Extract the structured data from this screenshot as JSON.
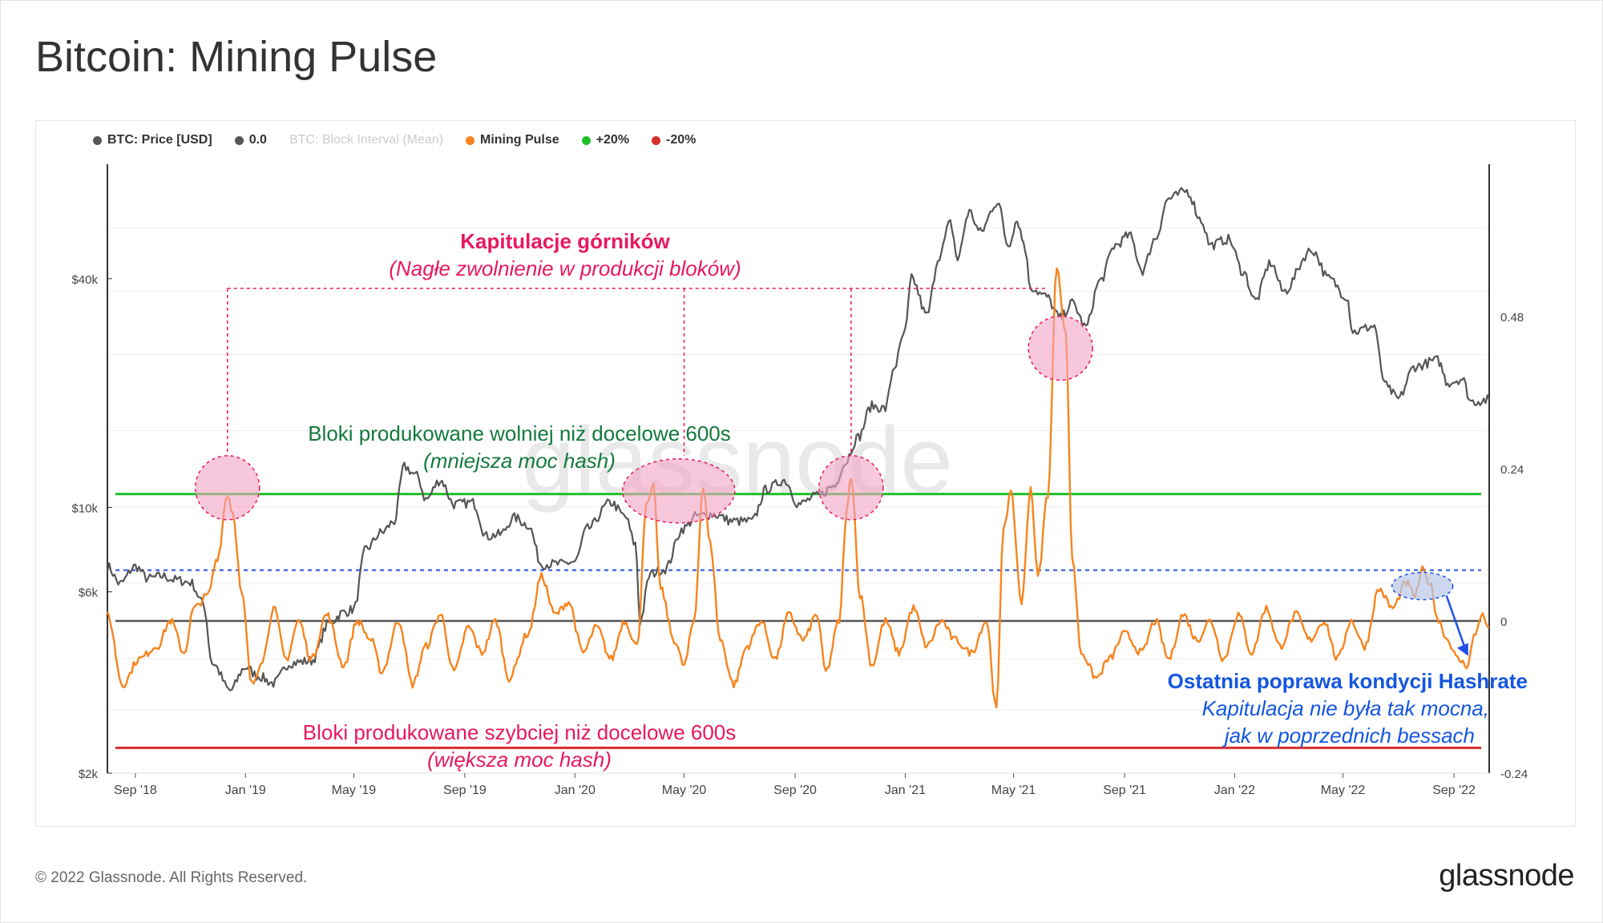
{
  "title": "Bitcoin: Mining Pulse",
  "footer": "© 2022 Glassnode. All Rights Reserved.",
  "brand": "glassnode",
  "watermark": "glassnode",
  "legend": [
    {
      "label": "BTC: Price [USD]",
      "color": "#555555",
      "enabled": true
    },
    {
      "label": "0.0",
      "color": "#555555",
      "enabled": true
    },
    {
      "label": "BTC: Block Interval (Mean)",
      "color": "#cccccc",
      "enabled": false
    },
    {
      "label": "Mining Pulse",
      "color": "#f7841e",
      "enabled": true
    },
    {
      "label": "+20%",
      "color": "#1fbf2a",
      "enabled": true
    },
    {
      "label": "-20%",
      "color": "#d62d2d",
      "enabled": true
    }
  ],
  "annotations": {
    "capitulation_title": "Kapitulacje górników",
    "capitulation_sub": "(Nagłe zwolnienie w produkcji bloków)",
    "slow_title": "Bloki produkowane wolniej niż docelowe 600s",
    "slow_sub": "(mniejsza moc hash)",
    "fast_title": "Bloki produkowane szybciej niż docelowe 600s",
    "fast_sub": "(większa moc hash)",
    "recovery_title": "Ostatnia poprawa kondycji Hashrate",
    "recovery_sub1": "Kapitulacja nie była tak mocna,",
    "recovery_sub2": "jak w poprzednich bessach"
  },
  "chart_data": {
    "type": "line",
    "x_range": [
      "2018-08-01",
      "2022-10-10"
    ],
    "x_ticks": [
      "Sep '18",
      "Jan '19",
      "May '19",
      "Sep '19",
      "Jan '20",
      "May '20",
      "Sep '20",
      "Jan '21",
      "May '21",
      "Sep '21",
      "Jan '22",
      "May '22",
      "Sep '22"
    ],
    "x_tick_dates": [
      "2018-09-01",
      "2019-01-01",
      "2019-05-01",
      "2019-09-01",
      "2020-01-01",
      "2020-05-01",
      "2020-09-01",
      "2021-01-01",
      "2021-05-01",
      "2021-09-01",
      "2022-01-01",
      "2022-05-01",
      "2022-09-01"
    ],
    "y_left": {
      "scale": "log",
      "ticks": [
        "$2k",
        "$6k",
        "$10k",
        "$40k"
      ],
      "tick_values": [
        2000,
        6000,
        10000,
        40000
      ],
      "range": [
        2000,
        80000
      ]
    },
    "y_right": {
      "scale": "linear",
      "ticks": [
        "-0.24",
        "0",
        "0.24",
        "0.48"
      ],
      "tick_values": [
        -0.24,
        0,
        0.24,
        0.48
      ],
      "range": [
        -0.24,
        0.72
      ]
    },
    "thresholds": {
      "zero": 0.0,
      "plus": 0.2,
      "minus": -0.2,
      "recent_peak": 0.08
    },
    "series": [
      {
        "name": "BTC: Price [USD]",
        "color": "#555555",
        "axis": "left",
        "points": [
          [
            "2018-08-01",
            7000
          ],
          [
            "2018-08-15",
            6300
          ],
          [
            "2018-09-01",
            7000
          ],
          [
            "2018-09-15",
            6500
          ],
          [
            "2018-10-01",
            6600
          ],
          [
            "2018-10-15",
            6450
          ],
          [
            "2018-11-01",
            6350
          ],
          [
            "2018-11-15",
            5600
          ],
          [
            "2018-11-25",
            3900
          ],
          [
            "2018-12-15",
            3300
          ],
          [
            "2019-01-01",
            3800
          ],
          [
            "2019-01-15",
            3600
          ],
          [
            "2019-02-01",
            3450
          ],
          [
            "2019-02-20",
            3900
          ],
          [
            "2019-03-15",
            3950
          ],
          [
            "2019-04-05",
            5000
          ],
          [
            "2019-04-20",
            5300
          ],
          [
            "2019-05-01",
            5400
          ],
          [
            "2019-05-15",
            7800
          ],
          [
            "2019-06-01",
            8600
          ],
          [
            "2019-06-15",
            9200
          ],
          [
            "2019-06-26",
            12800
          ],
          [
            "2019-07-10",
            12100
          ],
          [
            "2019-07-20",
            10500
          ],
          [
            "2019-08-05",
            11800
          ],
          [
            "2019-08-20",
            10200
          ],
          [
            "2019-09-10",
            10300
          ],
          [
            "2019-09-25",
            8400
          ],
          [
            "2019-10-10",
            8500
          ],
          [
            "2019-10-26",
            9400
          ],
          [
            "2019-11-10",
            9000
          ],
          [
            "2019-11-25",
            7100
          ],
          [
            "2019-12-15",
            7100
          ],
          [
            "2020-01-01",
            7200
          ],
          [
            "2020-01-15",
            8800
          ],
          [
            "2020-02-10",
            10300
          ],
          [
            "2020-02-25",
            9500
          ],
          [
            "2020-03-08",
            8000
          ],
          [
            "2020-03-13",
            5000
          ],
          [
            "2020-03-25",
            6700
          ],
          [
            "2020-04-10",
            6900
          ],
          [
            "2020-04-30",
            8800
          ],
          [
            "2020-05-15",
            9500
          ],
          [
            "2020-06-01",
            9600
          ],
          [
            "2020-06-25",
            9200
          ],
          [
            "2020-07-15",
            9200
          ],
          [
            "2020-08-01",
            11200
          ],
          [
            "2020-08-20",
            11800
          ],
          [
            "2020-09-05",
            10200
          ],
          [
            "2020-09-25",
            10700
          ],
          [
            "2020-10-15",
            11400
          ],
          [
            "2020-10-25",
            13000
          ],
          [
            "2020-11-10",
            15300
          ],
          [
            "2020-11-25",
            18500
          ],
          [
            "2020-12-10",
            18200
          ],
          [
            "2020-12-20",
            23500
          ],
          [
            "2021-01-01",
            29000
          ],
          [
            "2021-01-08",
            40000
          ],
          [
            "2021-01-25",
            32000
          ],
          [
            "2021-02-08",
            46000
          ],
          [
            "2021-02-20",
            56000
          ],
          [
            "2021-02-28",
            45000
          ],
          [
            "2021-03-13",
            60000
          ],
          [
            "2021-03-25",
            53000
          ],
          [
            "2021-04-13",
            63500
          ],
          [
            "2021-04-25",
            49000
          ],
          [
            "2021-05-05",
            57000
          ],
          [
            "2021-05-12",
            50000
          ],
          [
            "2021-05-20",
            38000
          ],
          [
            "2021-06-05",
            36000
          ],
          [
            "2021-06-22",
            31500
          ],
          [
            "2021-07-05",
            34500
          ],
          [
            "2021-07-20",
            29800
          ],
          [
            "2021-08-05",
            39500
          ],
          [
            "2021-08-22",
            49000
          ],
          [
            "2021-09-06",
            52000
          ],
          [
            "2021-09-21",
            42000
          ],
          [
            "2021-10-05",
            51000
          ],
          [
            "2021-10-20",
            65000
          ],
          [
            "2021-11-09",
            68000
          ],
          [
            "2021-11-25",
            57000
          ],
          [
            "2021-12-05",
            49000
          ],
          [
            "2021-12-25",
            50800
          ],
          [
            "2022-01-10",
            41800
          ],
          [
            "2022-01-24",
            35000
          ],
          [
            "2022-02-10",
            44000
          ],
          [
            "2022-02-24",
            37000
          ],
          [
            "2022-03-28",
            47500
          ],
          [
            "2022-04-15",
            40000
          ],
          [
            "2022-05-05",
            36000
          ],
          [
            "2022-05-12",
            29000
          ],
          [
            "2022-06-05",
            30000
          ],
          [
            "2022-06-14",
            22000
          ],
          [
            "2022-06-20",
            20500
          ],
          [
            "2022-07-01",
            19300
          ],
          [
            "2022-07-20",
            23500
          ],
          [
            "2022-08-14",
            24400
          ],
          [
            "2022-08-25",
            21300
          ],
          [
            "2022-09-10",
            21800
          ],
          [
            "2022-09-20",
            19000
          ],
          [
            "2022-10-10",
            19200
          ]
        ]
      },
      {
        "name": "Mining Pulse",
        "color": "#f7841e",
        "axis": "right",
        "points": [
          [
            "2018-08-01",
            0.01
          ],
          [
            "2018-08-18",
            -0.1
          ],
          [
            "2018-09-05",
            -0.06
          ],
          [
            "2018-09-25",
            -0.04
          ],
          [
            "2018-10-10",
            0.0
          ],
          [
            "2018-10-25",
            -0.05
          ],
          [
            "2018-11-05",
            0.02
          ],
          [
            "2018-11-20",
            0.04
          ],
          [
            "2018-12-01",
            0.1
          ],
          [
            "2018-12-12",
            0.2
          ],
          [
            "2018-12-18",
            0.17
          ],
          [
            "2018-12-28",
            0.04
          ],
          [
            "2019-01-08",
            -0.1
          ],
          [
            "2019-01-20",
            -0.06
          ],
          [
            "2019-02-01",
            0.02
          ],
          [
            "2019-02-15",
            -0.06
          ],
          [
            "2019-03-01",
            0.0
          ],
          [
            "2019-03-15",
            -0.06
          ],
          [
            "2019-04-01",
            0.01
          ],
          [
            "2019-04-20",
            -0.07
          ],
          [
            "2019-05-05",
            0.0
          ],
          [
            "2019-05-20",
            -0.03
          ],
          [
            "2019-06-01",
            -0.08
          ],
          [
            "2019-06-20",
            0.0
          ],
          [
            "2019-07-05",
            -0.1
          ],
          [
            "2019-07-20",
            -0.04
          ],
          [
            "2019-08-05",
            0.01
          ],
          [
            "2019-08-20",
            -0.08
          ],
          [
            "2019-09-05",
            -0.01
          ],
          [
            "2019-09-20",
            -0.05
          ],
          [
            "2019-10-05",
            0.0
          ],
          [
            "2019-10-20",
            -0.09
          ],
          [
            "2019-11-10",
            -0.02
          ],
          [
            "2019-11-25",
            0.07
          ],
          [
            "2019-12-10",
            0.01
          ],
          [
            "2019-12-25",
            0.03
          ],
          [
            "2020-01-10",
            -0.05
          ],
          [
            "2020-01-25",
            -0.01
          ],
          [
            "2020-02-10",
            -0.06
          ],
          [
            "2020-02-25",
            0.0
          ],
          [
            "2020-03-10",
            -0.04
          ],
          [
            "2020-03-20",
            0.18
          ],
          [
            "2020-03-28",
            0.21
          ],
          [
            "2020-04-05",
            0.05
          ],
          [
            "2020-04-20",
            -0.03
          ],
          [
            "2020-05-01",
            -0.07
          ],
          [
            "2020-05-12",
            0.0
          ],
          [
            "2020-05-22",
            0.21
          ],
          [
            "2020-05-30",
            0.12
          ],
          [
            "2020-06-10",
            -0.03
          ],
          [
            "2020-06-25",
            -0.1
          ],
          [
            "2020-07-10",
            -0.04
          ],
          [
            "2020-07-25",
            0.0
          ],
          [
            "2020-08-10",
            -0.06
          ],
          [
            "2020-08-25",
            0.01
          ],
          [
            "2020-09-10",
            -0.03
          ],
          [
            "2020-09-25",
            0.01
          ],
          [
            "2020-10-05",
            -0.08
          ],
          [
            "2020-10-20",
            0.0
          ],
          [
            "2020-10-28",
            0.17
          ],
          [
            "2020-11-02",
            0.23
          ],
          [
            "2020-11-12",
            0.04
          ],
          [
            "2020-11-25",
            -0.07
          ],
          [
            "2020-12-10",
            0.0
          ],
          [
            "2020-12-25",
            -0.05
          ],
          [
            "2021-01-10",
            0.02
          ],
          [
            "2021-01-25",
            -0.04
          ],
          [
            "2021-02-10",
            0.0
          ],
          [
            "2021-02-25",
            -0.03
          ],
          [
            "2021-03-15",
            -0.05
          ],
          [
            "2021-04-01",
            0.0
          ],
          [
            "2021-04-12",
            -0.14
          ],
          [
            "2021-04-20",
            0.15
          ],
          [
            "2021-04-28",
            0.2
          ],
          [
            "2021-05-10",
            0.03
          ],
          [
            "2021-05-20",
            0.21
          ],
          [
            "2021-05-28",
            0.07
          ],
          [
            "2021-06-08",
            0.2
          ],
          [
            "2021-06-18",
            0.56
          ],
          [
            "2021-06-28",
            0.45
          ],
          [
            "2021-07-05",
            0.1
          ],
          [
            "2021-07-15",
            -0.05
          ],
          [
            "2021-08-01",
            -0.09
          ],
          [
            "2021-08-15",
            -0.06
          ],
          [
            "2021-09-01",
            -0.02
          ],
          [
            "2021-09-20",
            -0.05
          ],
          [
            "2021-10-05",
            0.0
          ],
          [
            "2021-10-20",
            -0.06
          ],
          [
            "2021-11-05",
            0.01
          ],
          [
            "2021-11-20",
            -0.03
          ],
          [
            "2021-12-05",
            0.0
          ],
          [
            "2021-12-20",
            -0.06
          ],
          [
            "2022-01-05",
            0.01
          ],
          [
            "2022-01-20",
            -0.05
          ],
          [
            "2022-02-05",
            0.02
          ],
          [
            "2022-02-20",
            -0.04
          ],
          [
            "2022-03-10",
            0.01
          ],
          [
            "2022-03-25",
            -0.03
          ],
          [
            "2022-04-10",
            0.0
          ],
          [
            "2022-04-25",
            -0.06
          ],
          [
            "2022-05-10",
            0.0
          ],
          [
            "2022-05-25",
            -0.04
          ],
          [
            "2022-06-10",
            0.05
          ],
          [
            "2022-06-25",
            0.02
          ],
          [
            "2022-07-10",
            0.06
          ],
          [
            "2022-07-20",
            0.04
          ],
          [
            "2022-07-28",
            0.08
          ],
          [
            "2022-08-05",
            0.06
          ],
          [
            "2022-08-15",
            0.0
          ],
          [
            "2022-08-25",
            -0.03
          ],
          [
            "2022-09-05",
            -0.06
          ],
          [
            "2022-09-15",
            -0.07
          ],
          [
            "2022-09-25",
            -0.02
          ],
          [
            "2022-10-01",
            0.01
          ],
          [
            "2022-10-10",
            -0.01
          ]
        ]
      }
    ]
  }
}
